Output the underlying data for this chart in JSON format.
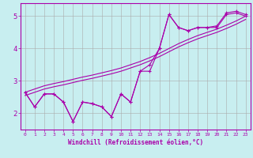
{
  "background_color": "#c8eef0",
  "line_color": "#aa00aa",
  "grid_color": "#aaaaaa",
  "xlabel": "Windchill (Refroidissement éolien,°C)",
  "xlabel_color": "#aa00aa",
  "tick_color": "#aa00aa",
  "xlim": [
    -0.5,
    23.5
  ],
  "ylim": [
    1.5,
    5.4
  ],
  "yticks": [
    2,
    3,
    4,
    5
  ],
  "xticks": [
    0,
    1,
    2,
    3,
    4,
    5,
    6,
    7,
    8,
    9,
    10,
    11,
    12,
    13,
    14,
    15,
    16,
    17,
    18,
    19,
    20,
    21,
    22,
    23
  ],
  "line1_x": [
    0,
    1,
    2,
    3,
    4,
    5,
    6,
    7,
    8,
    9,
    10,
    11,
    12,
    13,
    14,
    15,
    16,
    17,
    18,
    19,
    20,
    21,
    22,
    23
  ],
  "line1_y": [
    2.65,
    2.2,
    2.6,
    2.6,
    2.35,
    1.75,
    2.35,
    2.3,
    2.2,
    1.9,
    2.6,
    2.35,
    3.3,
    3.3,
    4.0,
    5.05,
    4.65,
    4.55,
    4.65,
    4.65,
    4.65,
    5.05,
    5.1,
    5.0
  ],
  "line2_x": [
    0,
    1,
    2,
    3,
    4,
    5,
    6,
    7,
    8,
    9,
    10,
    11,
    12,
    13,
    14,
    15,
    16,
    17,
    18,
    19,
    20,
    21,
    22,
    23
  ],
  "line2_y": [
    2.65,
    2.2,
    2.6,
    2.6,
    2.35,
    1.75,
    2.35,
    2.3,
    2.2,
    1.9,
    2.6,
    2.35,
    3.3,
    3.5,
    4.0,
    5.05,
    4.65,
    4.55,
    4.65,
    4.65,
    4.7,
    5.1,
    5.15,
    5.05
  ],
  "line3_x": [
    0,
    1,
    2,
    3,
    4,
    5,
    6,
    7,
    8,
    9,
    10,
    11,
    12,
    13,
    14,
    15,
    16,
    17,
    18,
    19,
    20,
    21,
    22,
    23
  ],
  "line3_y": [
    2.65,
    2.75,
    2.85,
    2.92,
    2.98,
    3.05,
    3.12,
    3.18,
    3.25,
    3.32,
    3.4,
    3.5,
    3.6,
    3.72,
    3.85,
    4.0,
    4.15,
    4.28,
    4.4,
    4.5,
    4.6,
    4.72,
    4.85,
    5.0
  ],
  "line4_x": [
    0,
    1,
    2,
    3,
    4,
    5,
    6,
    7,
    8,
    9,
    10,
    11,
    12,
    13,
    14,
    15,
    16,
    17,
    18,
    19,
    20,
    21,
    22,
    23
  ],
  "line4_y": [
    2.55,
    2.65,
    2.75,
    2.82,
    2.88,
    2.95,
    3.02,
    3.08,
    3.15,
    3.22,
    3.3,
    3.4,
    3.5,
    3.62,
    3.75,
    3.9,
    4.05,
    4.18,
    4.3,
    4.4,
    4.5,
    4.62,
    4.75,
    4.9
  ]
}
